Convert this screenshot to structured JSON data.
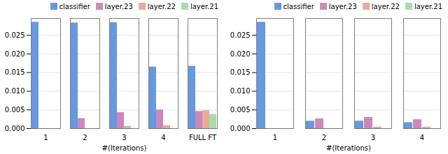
{
  "chart_data": [
    {
      "type": "bar",
      "xlabel": "#(Iterations)",
      "categories": [
        "1",
        "2",
        "3",
        "4",
        "FULL FT"
      ],
      "series": [
        {
          "name": "classifier",
          "color": "#6699DD",
          "values": [
            0.0285,
            0.0283,
            0.0284,
            0.0165,
            0.0167
          ]
        },
        {
          "name": "layer.23",
          "color": "#CC88BB",
          "values": [
            0.0,
            0.0027,
            0.0043,
            0.005,
            0.0046
          ]
        },
        {
          "name": "layer.22",
          "color": "#E8AA99",
          "values": [
            0.0,
            0.0,
            0.0006,
            0.0008,
            0.0048
          ]
        },
        {
          "name": "layer.21",
          "color": "#AADDAA",
          "values": [
            0.0,
            0.0,
            0.0,
            0.0,
            0.0038
          ]
        }
      ],
      "ylim": [
        0,
        0.0295
      ],
      "yticks": [
        {
          "value": 0,
          "label": "0.000"
        },
        0.005,
        {
          "value": 0.01,
          "label": "0.010"
        },
        0.015,
        {
          "value": 0.02,
          "label": "0.020"
        },
        0.025
      ],
      "grid": true,
      "legend": "upper right"
    },
    {
      "type": "bar",
      "xlabel": "#(Iterations)",
      "categories": [
        "1",
        "2",
        "3",
        "4"
      ],
      "series": [
        {
          "name": "classifier",
          "color": "#6699DD",
          "values": [
            0.0285,
            0.002,
            0.002,
            0.0016
          ]
        },
        {
          "name": "layer.23",
          "color": "#CC88BB",
          "values": [
            0.0,
            0.0026,
            0.003,
            0.0024
          ]
        },
        {
          "name": "layer.22",
          "color": "#E8AA99",
          "values": [
            0.0,
            0.0,
            0.0004,
            0.0004
          ]
        },
        {
          "name": "layer.21",
          "color": "#AADDAA",
          "values": [
            0.0,
            0.0,
            0.0,
            0.0
          ]
        }
      ],
      "ylim": [
        0,
        0.0295
      ],
      "yticks": [
        {
          "value": 0,
          "label": "0.000"
        },
        0.005,
        {
          "value": 0.01,
          "label": "0.010"
        },
        0.015,
        {
          "value": 0.02,
          "label": "0.020"
        },
        0.025
      ],
      "grid": true,
      "legend": "upper right"
    }
  ]
}
